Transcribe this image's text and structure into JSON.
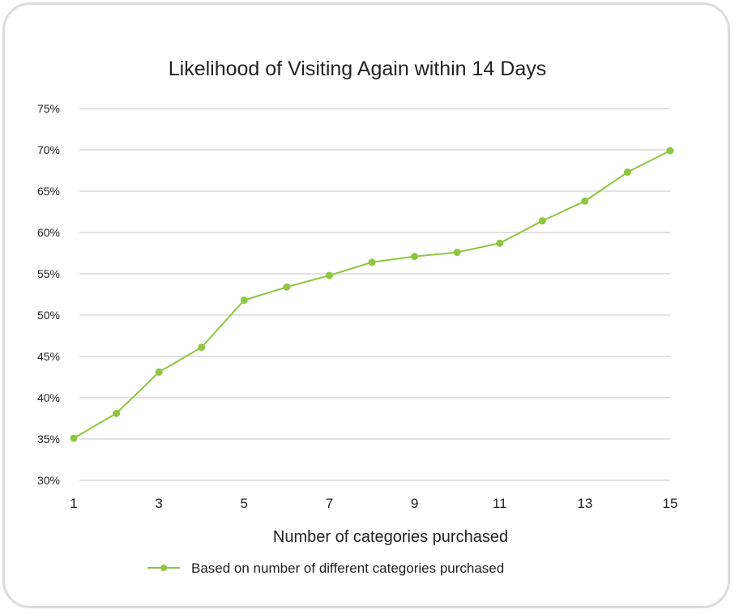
{
  "chart_data": {
    "type": "line",
    "title": "Likelihood of Visiting Again within 14 Days",
    "xlabel": "Number of categories purchased",
    "ylabel": "",
    "x": [
      1,
      2,
      3,
      4,
      5,
      6,
      7,
      8,
      9,
      10,
      11,
      12,
      13,
      14,
      15
    ],
    "x_tick_labels": [
      "1",
      "3",
      "5",
      "7",
      "9",
      "11",
      "13",
      "15"
    ],
    "x_tick_values": [
      1,
      3,
      5,
      7,
      9,
      11,
      13,
      15
    ],
    "y_tick_labels": [
      "30%",
      "35%",
      "40%",
      "45%",
      "50%",
      "55%",
      "60%",
      "65%",
      "70%",
      "75%"
    ],
    "y_tick_values": [
      30,
      35,
      40,
      45,
      50,
      55,
      60,
      65,
      70,
      75
    ],
    "xlim": [
      1,
      15
    ],
    "ylim": [
      30,
      75
    ],
    "grid": true,
    "legend_position": "bottom-center",
    "series": [
      {
        "name": "Based on number of different categories purchased",
        "color": "#8dc63f",
        "values": [
          35.1,
          38.1,
          43.1,
          46.1,
          51.8,
          53.4,
          54.8,
          56.4,
          57.1,
          57.6,
          58.7,
          61.4,
          63.8,
          67.3,
          69.9
        ]
      }
    ]
  }
}
